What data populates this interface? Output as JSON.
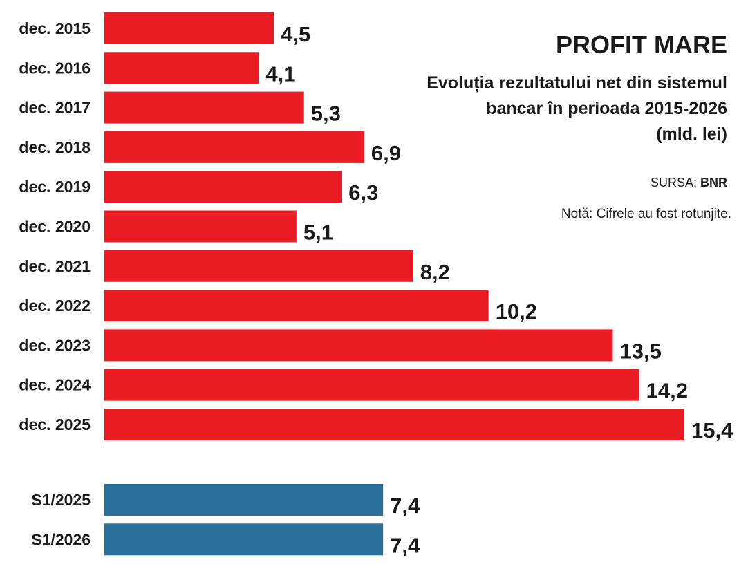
{
  "chart_data": {
    "type": "bar",
    "orientation": "horizontal",
    "title": "PROFIT MARE",
    "subtitle_lines": [
      "Evoluția rezultatului net din sistemul",
      "bancar în perioada 2015-2026",
      "(mld. lei)"
    ],
    "source_label": "SURSA: ",
    "source_value": "BNR",
    "note": "Notă: Cifrele au fost rotunjite.",
    "colors": {
      "annual": "#ec1c24",
      "semester": "#2a6f9a"
    },
    "xlim": [
      0,
      15.4
    ],
    "groups": [
      {
        "name": "annual",
        "categories": [
          "dec. 2015",
          "dec. 2016",
          "dec. 2017",
          "dec. 2018",
          "dec. 2019",
          "dec. 2020",
          "dec. 2021",
          "dec. 2022",
          "dec. 2023",
          "dec. 2024",
          "dec. 2025"
        ],
        "values": [
          4.5,
          4.1,
          5.3,
          6.9,
          6.3,
          5.1,
          8.2,
          10.2,
          13.5,
          14.2,
          15.4
        ],
        "value_labels": [
          "4,5",
          "4,1",
          "5,3",
          "6,9",
          "6,3",
          "5,1",
          "8,2",
          "10,2",
          "13,5",
          "14,2",
          "15,4"
        ]
      },
      {
        "name": "semester",
        "categories": [
          "S1/2025",
          "S1/2026"
        ],
        "values": [
          7.4,
          7.4
        ],
        "value_labels": [
          "7,4",
          "7,4"
        ]
      }
    ]
  }
}
